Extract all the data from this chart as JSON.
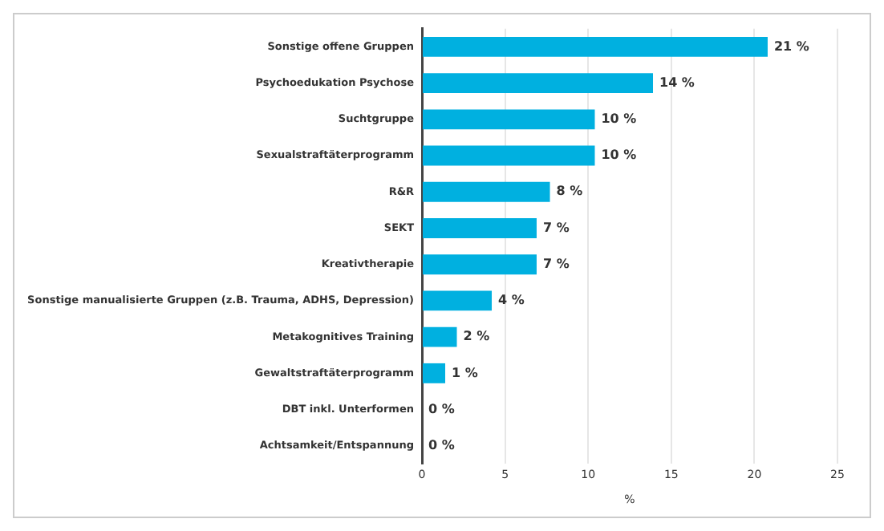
{
  "chart_data": {
    "type": "bar",
    "orientation": "horizontal",
    "xlabel": "%",
    "categories": [
      "Sonstige offene Gruppen",
      "Psychoedukation Psychose",
      "Suchtgruppe",
      "Sexualstraftäterprogramm",
      "R&R",
      "SEKT",
      "Kreativtherapie",
      "Sonstige manualisierte Gruppen (z.B. Trauma, ADHS, Depression)",
      "Metakognitives Training",
      "Gewaltstraftäterprogramm",
      "DBT inkl. Unterformen",
      "Achtsamkeit/Entspannung"
    ],
    "values": [
      20.8,
      13.9,
      10.4,
      10.4,
      7.7,
      6.9,
      6.9,
      4.2,
      2.1,
      1.4,
      0,
      0
    ],
    "value_labels": [
      "21 %",
      "14 %",
      "10 %",
      "10 %",
      "8 %",
      "7 %",
      "7 %",
      "4 %",
      "2 %",
      "1 %",
      "0 %",
      "0 %"
    ],
    "color": "#00b0e0",
    "xlim": [
      0,
      25
    ],
    "xticks": [
      0,
      5,
      10,
      15,
      20,
      25
    ],
    "grid": "x",
    "legend": false
  }
}
